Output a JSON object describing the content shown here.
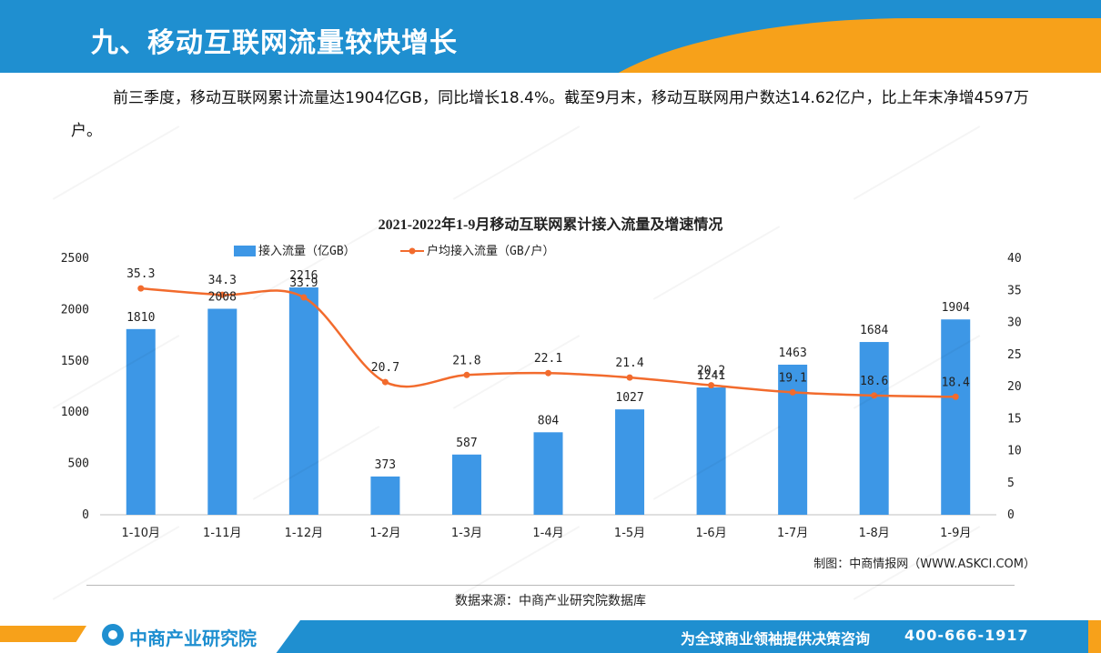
{
  "header": {
    "title": "九、移动互联网流量较快增长"
  },
  "intro_text": "前三季度，移动互联网累计流量达1904亿GB，同比增长18.4%。截至9月末，移动互联网用户数达14.62亿户，比上年末净增4597万户。",
  "credit": "制图：中商情报网（WWW.ASKCI.COM）",
  "source": "数据来源：中商产业研究院数据库",
  "footer": {
    "logo": "中商产业研究院",
    "slogan": "为全球商业领袖提供决策咨询",
    "phone": "400-666-1917"
  },
  "colors": {
    "brand_blue": "#1f8fd0",
    "brand_orange": "#f7a11a",
    "bar": "#3d97e6",
    "line": "#f26b2d"
  },
  "chart_data": {
    "type": "bar+line",
    "title": "2021-2022年1-9月移动互联网累计接入流量及增速情况",
    "categories": [
      "1-10月",
      "1-11月",
      "1-12月",
      "1-2月",
      "1-3月",
      "1-4月",
      "1-5月",
      "1-6月",
      "1-7月",
      "1-8月",
      "1-9月"
    ],
    "series": [
      {
        "name": "接入流量（亿GB）",
        "type": "bar",
        "axis": "left",
        "values": [
          1810,
          2008,
          2216,
          373,
          587,
          804,
          1027,
          1241,
          1463,
          1684,
          1904
        ]
      },
      {
        "name": "户均接入流量（GB/户）",
        "type": "line",
        "axis": "right",
        "values": [
          35.3,
          34.3,
          33.9,
          20.7,
          21.8,
          22.1,
          21.4,
          20.2,
          19.1,
          18.6,
          18.4
        ]
      }
    ],
    "y_left": {
      "min": 0,
      "max": 2500,
      "ticks": [
        0,
        500,
        1000,
        1500,
        2000,
        2500
      ]
    },
    "y_right": {
      "min": 0,
      "max": 40,
      "ticks": [
        0,
        5,
        10,
        15,
        20,
        25,
        30,
        35,
        40
      ]
    },
    "legend": "top-center",
    "grid": false
  }
}
